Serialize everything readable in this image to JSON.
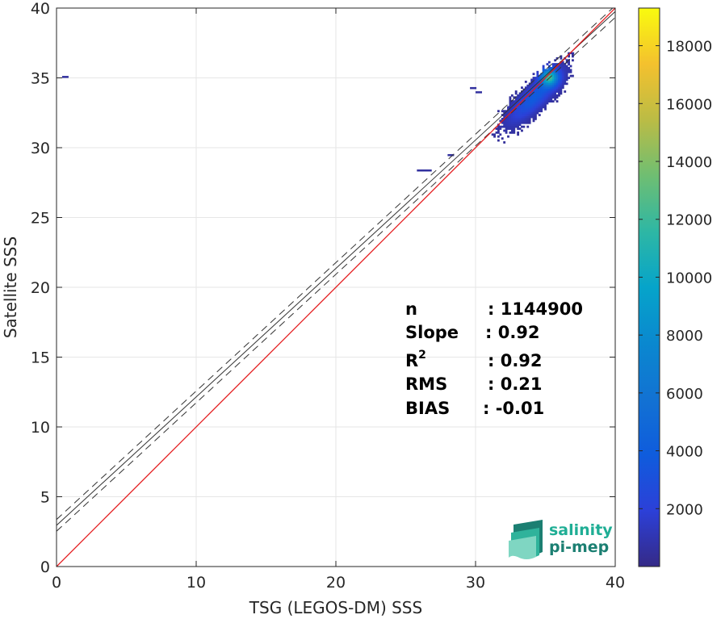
{
  "chart_data": {
    "type": "heatmap",
    "xlabel": "TSG (LEGOS-DM) SSS",
    "ylabel": "Satellite SSS",
    "xlim": [
      0,
      40
    ],
    "ylim": [
      0,
      40
    ],
    "xticks": [
      0,
      10,
      20,
      30,
      40
    ],
    "yticks": [
      0,
      5,
      10,
      15,
      20,
      25,
      30,
      35,
      40
    ],
    "grid": true,
    "colorbar": {
      "range": [
        0,
        19300
      ],
      "ticks": [
        2000,
        4000,
        6000,
        8000,
        10000,
        12000,
        14000,
        16000,
        18000
      ],
      "colormap": "parula"
    },
    "reference_lines": {
      "identity_color": "#e41a1c",
      "regression": {
        "slope": 0.92,
        "intercept": 2.95
      },
      "dashed_offset": 0.42,
      "regression_color": "#333333"
    },
    "density_cloud": {
      "center": [
        34.2,
        33.6
      ],
      "spread_along": 1.55,
      "spread_across": 0.48,
      "x_range": [
        27.5,
        37.0
      ],
      "peak_at": [
        35.2,
        35.0
      ]
    },
    "stats": [
      {
        "key": "n",
        "value": ": 1144900"
      },
      {
        "key": "Slope",
        "value": ": 0.92"
      },
      {
        "key": "R",
        "sup": "2",
        "value": ": 0.92"
      },
      {
        "key": "RMS",
        "value": ": 0.21"
      },
      {
        "key": "BIAS",
        "value": ": -0.01"
      }
    ]
  },
  "logo": {
    "line1": "salinity",
    "line2": "pi-mep"
  }
}
